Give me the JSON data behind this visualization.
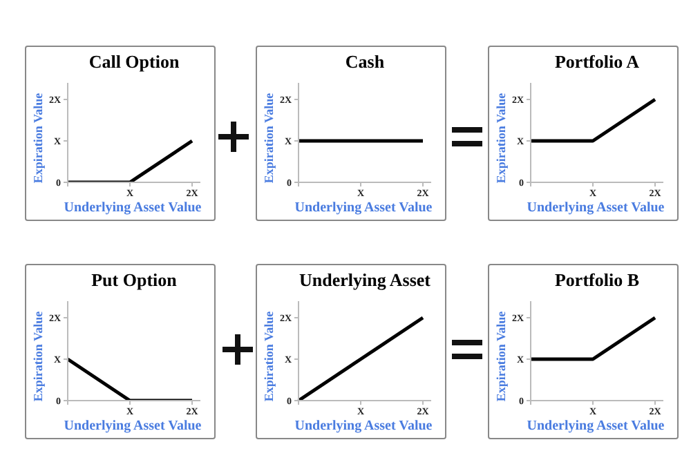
{
  "chart_data": [
    {
      "type": "line",
      "title": "Call Option",
      "xlabel": "Underlying Asset Value",
      "ylabel": "Expiration Value",
      "categories": [
        null,
        "X",
        "2X"
      ],
      "series": [
        {
          "color": "#000000",
          "values": [
            0,
            0,
            1
          ]
        }
      ],
      "ylim": [
        0,
        2.4
      ],
      "yticks": [
        {
          "value": 0,
          "label": "0"
        },
        {
          "value": 1,
          "label": "X"
        },
        {
          "value": 2,
          "label": "2X"
        }
      ]
    },
    {
      "type": "line",
      "title": "Cash",
      "xlabel": "Underlying Asset Value",
      "ylabel": "Expiration Value",
      "categories": [
        null,
        "X",
        "2X"
      ],
      "series": [
        {
          "color": "#000000",
          "values": [
            1,
            1,
            1
          ]
        }
      ],
      "ylim": [
        0,
        2.4
      ],
      "yticks": [
        {
          "value": 0,
          "label": "0"
        },
        {
          "value": 1,
          "label": "X"
        },
        {
          "value": 2,
          "label": "2X"
        }
      ]
    },
    {
      "type": "line",
      "title": "Portfolio A",
      "xlabel": "Underlying Asset Value",
      "ylabel": "Expiration Value",
      "categories": [
        null,
        "X",
        "2X"
      ],
      "series": [
        {
          "color": "#000000",
          "values": [
            1,
            1,
            2
          ]
        }
      ],
      "ylim": [
        0,
        2.4
      ],
      "yticks": [
        {
          "value": 0,
          "label": "0"
        },
        {
          "value": 1,
          "label": "X"
        },
        {
          "value": 2,
          "label": "2X"
        }
      ]
    },
    {
      "type": "line",
      "title": "Put Option",
      "xlabel": "Underlying Asset Value",
      "ylabel": "Expiration Value",
      "categories": [
        null,
        "X",
        "2X"
      ],
      "series": [
        {
          "color": "#000000",
          "values": [
            1,
            0,
            0
          ]
        }
      ],
      "ylim": [
        0,
        2.4
      ],
      "yticks": [
        {
          "value": 0,
          "label": "0"
        },
        {
          "value": 1,
          "label": "X"
        },
        {
          "value": 2,
          "label": "2X"
        }
      ]
    },
    {
      "type": "line",
      "title": "Underlying Asset",
      "xlabel": "Underlying Asset Value",
      "ylabel": "Expiration Value",
      "categories": [
        null,
        "X",
        "2X"
      ],
      "series": [
        {
          "color": "#000000",
          "values": [
            0,
            1,
            2
          ]
        }
      ],
      "ylim": [
        0,
        2.4
      ],
      "yticks": [
        {
          "value": 0,
          "label": "0"
        },
        {
          "value": 1,
          "label": "X"
        },
        {
          "value": 2,
          "label": "2X"
        }
      ]
    },
    {
      "type": "line",
      "title": "Portfolio B",
      "xlabel": "Underlying Asset Value",
      "ylabel": "Expiration Value",
      "categories": [
        null,
        "X",
        "2X"
      ],
      "series": [
        {
          "color": "#000000",
          "values": [
            1,
            1,
            2
          ]
        }
      ],
      "ylim": [
        0,
        2.4
      ],
      "yticks": [
        {
          "value": 0,
          "label": "0"
        },
        {
          "value": 1,
          "label": "X"
        },
        {
          "value": 2,
          "label": "2X"
        }
      ]
    }
  ]
}
